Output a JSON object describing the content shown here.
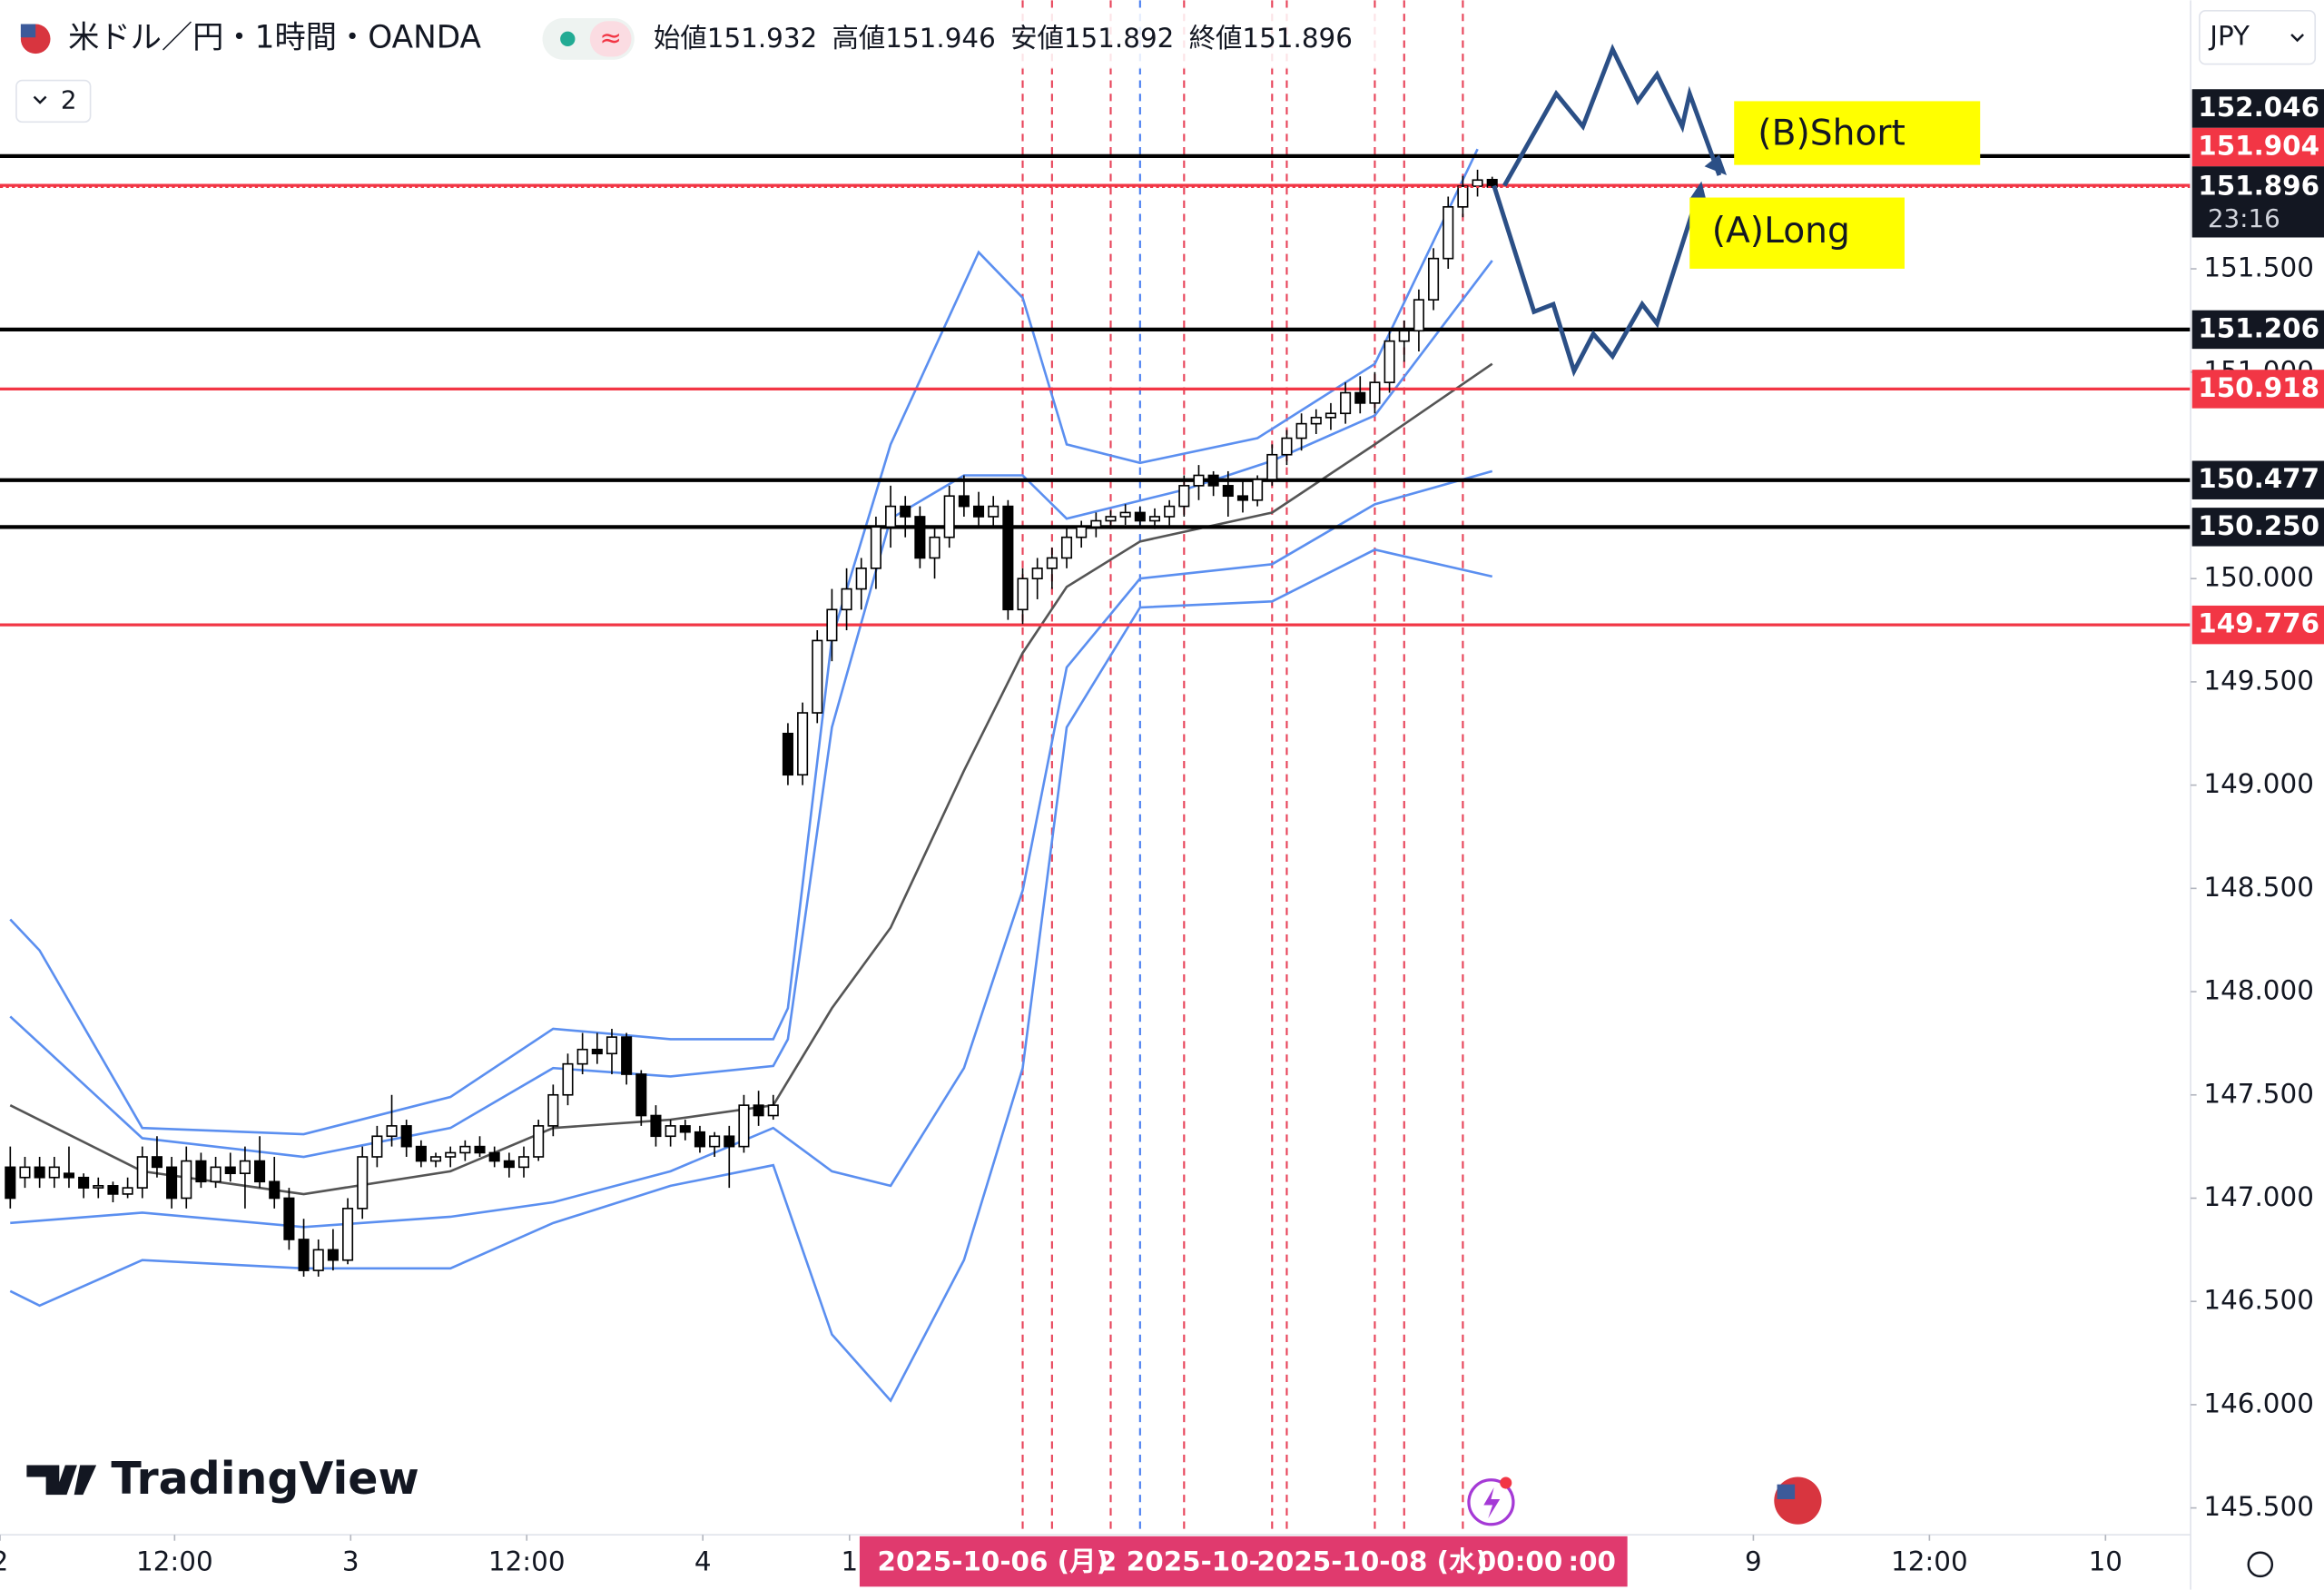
{
  "header": {
    "symbol": "米ドル／円・1時間・OANDA",
    "ohlc": [
      "始値151.932",
      "高値151.946",
      "安値151.892",
      "終値151.896"
    ],
    "indicator_count": 2,
    "currency": "JPY",
    "countdown": "23:16"
  },
  "watermark": "TradingView",
  "annotations": [
    "(B)Short",
    "(A)Long"
  ],
  "crosshair_labels": [
    "2025-10-06 (月)",
    "2",
    "2025-10-",
    "2025-10-08 (水)",
    "00:00",
    ":00"
  ],
  "chart_data": {
    "type": "candlestick",
    "open": [
      147.15,
      147.1,
      147.15,
      147.1,
      147.12,
      147.1,
      147.05,
      147.06,
      147.02,
      147.05,
      147.2,
      147.15,
      147.0,
      147.18,
      147.08,
      147.15,
      147.12,
      147.18,
      147.08,
      147.0,
      146.8,
      146.65,
      146.75,
      146.7,
      146.95,
      147.2,
      147.3,
      147.35,
      147.25,
      147.18,
      147.2,
      147.22,
      147.25,
      147.22,
      147.18,
      147.15,
      147.2,
      147.35,
      147.5,
      147.65,
      147.72,
      147.7,
      147.78,
      147.6,
      147.4,
      147.3,
      147.35,
      147.32,
      147.25,
      147.3,
      147.25,
      147.45,
      147.4,
      149.25,
      149.05,
      149.35,
      149.7,
      149.85,
      149.95,
      150.05,
      150.25,
      150.35,
      150.3,
      150.1,
      150.2,
      150.4,
      150.35,
      150.3,
      150.35,
      149.85,
      150.0,
      150.05,
      150.1,
      150.2,
      150.25,
      150.28,
      150.3,
      150.32,
      150.28,
      150.3,
      150.35,
      150.45,
      150.5,
      150.45,
      150.4,
      150.38,
      150.48,
      150.6,
      150.68,
      150.75,
      150.78,
      150.8,
      150.9,
      150.85,
      150.95,
      151.15,
      151.2,
      151.35,
      151.55,
      151.8,
      151.9,
      151.932
    ],
    "high": [
      147.25,
      147.2,
      147.2,
      147.2,
      147.25,
      147.12,
      147.1,
      147.08,
      147.1,
      147.25,
      147.3,
      147.2,
      147.25,
      147.22,
      147.2,
      147.22,
      147.25,
      147.3,
      147.2,
      147.05,
      146.9,
      146.8,
      146.85,
      147.0,
      147.25,
      147.35,
      147.5,
      147.38,
      147.28,
      147.22,
      147.25,
      147.28,
      147.3,
      147.25,
      147.22,
      147.25,
      147.38,
      147.55,
      147.7,
      147.8,
      147.8,
      147.82,
      147.8,
      147.62,
      147.45,
      147.38,
      147.38,
      147.35,
      147.32,
      147.35,
      147.5,
      147.52,
      147.5,
      149.3,
      149.4,
      149.75,
      149.95,
      150.05,
      150.1,
      150.3,
      150.45,
      150.4,
      150.35,
      150.25,
      150.45,
      150.5,
      150.42,
      150.4,
      150.38,
      150.05,
      150.1,
      150.15,
      150.25,
      150.28,
      150.32,
      150.33,
      150.36,
      150.35,
      150.34,
      150.38,
      150.5,
      150.55,
      150.52,
      150.52,
      150.48,
      150.5,
      150.65,
      150.72,
      150.8,
      150.82,
      150.85,
      150.95,
      150.98,
      151.0,
      151.2,
      151.25,
      151.4,
      151.6,
      151.85,
      151.95,
      151.98,
      151.946
    ],
    "low": [
      146.95,
      147.05,
      147.05,
      147.05,
      147.05,
      147.0,
      147.0,
      146.98,
      147.0,
      147.0,
      147.1,
      146.95,
      146.95,
      147.05,
      147.05,
      147.08,
      146.95,
      147.05,
      146.95,
      146.75,
      146.62,
      146.62,
      146.65,
      146.68,
      146.9,
      147.15,
      147.25,
      147.2,
      147.15,
      147.15,
      147.15,
      147.18,
      147.2,
      147.15,
      147.1,
      147.1,
      147.18,
      147.3,
      147.45,
      147.6,
      147.65,
      147.6,
      147.55,
      147.35,
      147.25,
      147.25,
      147.28,
      147.22,
      147.2,
      147.05,
      147.22,
      147.35,
      147.38,
      149.0,
      149.0,
      149.3,
      149.6,
      149.75,
      149.85,
      149.95,
      150.15,
      150.2,
      150.05,
      150.0,
      150.15,
      150.3,
      150.25,
      150.25,
      149.8,
      149.78,
      149.9,
      149.95,
      150.05,
      150.15,
      150.2,
      150.24,
      150.26,
      150.25,
      150.24,
      150.25,
      150.3,
      150.38,
      150.4,
      150.3,
      150.32,
      150.35,
      150.45,
      150.55,
      150.62,
      150.7,
      150.72,
      150.75,
      150.8,
      150.8,
      150.9,
      151.05,
      151.1,
      151.3,
      151.5,
      151.75,
      151.85,
      151.892
    ],
    "close": [
      147.0,
      147.15,
      147.1,
      147.15,
      147.1,
      147.05,
      147.06,
      147.02,
      147.05,
      147.2,
      147.15,
      147.0,
      147.18,
      147.08,
      147.15,
      147.12,
      147.18,
      147.08,
      147.0,
      146.8,
      146.65,
      146.75,
      146.7,
      146.95,
      147.2,
      147.3,
      147.35,
      147.25,
      147.18,
      147.2,
      147.22,
      147.25,
      147.22,
      147.18,
      147.15,
      147.2,
      147.35,
      147.5,
      147.65,
      147.72,
      147.7,
      147.78,
      147.6,
      147.4,
      147.3,
      147.35,
      147.32,
      147.25,
      147.3,
      147.25,
      147.45,
      147.4,
      147.45,
      149.05,
      149.35,
      149.7,
      149.85,
      149.95,
      150.05,
      150.25,
      150.35,
      150.3,
      150.1,
      150.2,
      150.4,
      150.35,
      150.3,
      150.35,
      149.85,
      150.0,
      150.05,
      150.1,
      150.2,
      150.25,
      150.28,
      150.3,
      150.32,
      150.28,
      150.3,
      150.35,
      150.45,
      150.5,
      150.45,
      150.4,
      150.38,
      150.48,
      150.6,
      150.68,
      150.75,
      150.78,
      150.8,
      150.9,
      150.85,
      150.95,
      151.15,
      151.2,
      151.35,
      151.55,
      151.8,
      151.9,
      151.93,
      151.896
    ],
    "up_color": "#ffffff",
    "down_color": "#000000",
    "series": [
      {
        "color": "#5b8ff0",
        "x": [
          0,
          2,
          9,
          20,
          30,
          37,
          45,
          52,
          53,
          56,
          60,
          66,
          69,
          72,
          77,
          85,
          93,
          100
        ],
        "values": [
          148.35,
          148.2,
          147.34,
          147.31,
          147.49,
          147.82,
          147.77,
          147.77,
          147.92,
          149.71,
          150.65,
          151.58,
          151.36,
          150.65,
          150.56,
          150.68,
          151.04,
          152.08
        ]
      },
      {
        "color": "#5b8ff0",
        "x": [
          0,
          9,
          20,
          30,
          37,
          45,
          52,
          53,
          56,
          60,
          65,
          69,
          72,
          80,
          86,
          93,
          101
        ],
        "values": [
          147.88,
          147.29,
          147.2,
          147.34,
          147.63,
          147.59,
          147.64,
          147.77,
          149.28,
          150.29,
          150.5,
          150.5,
          150.29,
          150.43,
          150.57,
          150.79,
          151.54
        ]
      },
      {
        "color": "#555555",
        "x": [
          0,
          9,
          20,
          30,
          37,
          45,
          52,
          56,
          60,
          65,
          69,
          72,
          77,
          86,
          93,
          101
        ],
        "values": [
          147.45,
          147.13,
          147.02,
          147.13,
          147.34,
          147.38,
          147.45,
          147.92,
          148.31,
          149.07,
          149.64,
          149.96,
          150.18,
          150.32,
          150.65,
          151.04
        ]
      },
      {
        "color": "#5b8ff0",
        "x": [
          0,
          9,
          20,
          30,
          37,
          45,
          52,
          56,
          60,
          65,
          69,
          72,
          77,
          86,
          93,
          101
        ],
        "values": [
          146.88,
          146.93,
          146.86,
          146.91,
          146.98,
          147.13,
          147.34,
          147.13,
          147.06,
          147.63,
          148.49,
          149.57,
          150.0,
          150.07,
          150.36,
          150.52
        ]
      },
      {
        "color": "#5b8ff0",
        "x": [
          0,
          2,
          9,
          20,
          30,
          37,
          45,
          52,
          56,
          60,
          65,
          69,
          72,
          77,
          86,
          93,
          101
        ],
        "values": [
          146.55,
          146.48,
          146.7,
          146.66,
          146.66,
          146.88,
          147.06,
          147.16,
          146.34,
          146.02,
          146.7,
          147.63,
          149.28,
          149.86,
          149.89,
          150.14,
          150.01
        ]
      }
    ],
    "levels": [
      {
        "value": 152.046,
        "label": "152.046",
        "color": "#000000"
      },
      {
        "value": 151.904,
        "label": "151.904",
        "color": "#f23645"
      },
      {
        "value": 151.206,
        "label": "151.206",
        "color": "#000000"
      },
      {
        "value": 150.918,
        "label": "150.918",
        "color": "#f23645"
      },
      {
        "value": 150.477,
        "label": "150.477",
        "color": "#000000"
      },
      {
        "value": 150.25,
        "label": "150.250",
        "color": "#000000"
      },
      {
        "value": 149.776,
        "label": "149.776",
        "color": "#f23645"
      }
    ],
    "vlines": [
      {
        "x": 69,
        "color": "#e8445a"
      },
      {
        "x": 71,
        "color": "#e8445a"
      },
      {
        "x": 75,
        "color": "#e8445a"
      },
      {
        "x": 77,
        "color": "#4a7ff0"
      },
      {
        "x": 80,
        "color": "#e8445a"
      },
      {
        "x": 86,
        "color": "#e8445a"
      },
      {
        "x": 87,
        "color": "#e8445a"
      },
      {
        "x": 93,
        "color": "#e8445a"
      },
      {
        "x": 95,
        "color": "#e8445a"
      },
      {
        "x": 99,
        "color": "#e8445a"
      }
    ],
    "xlim": [
      -0.7,
      148.6
    ],
    "xticks": [
      {
        "value": -0.7,
        "label": "2"
      },
      {
        "value": 11.2,
        "label": "12:00"
      },
      {
        "value": 23.2,
        "label": "3"
      },
      {
        "value": 35.2,
        "label": "12:00"
      },
      {
        "value": 47.2,
        "label": "4"
      },
      {
        "value": 57.2,
        "label": "1"
      },
      {
        "value": 118.8,
        "label": "9"
      },
      {
        "value": 130.8,
        "label": "12:00"
      },
      {
        "value": 142.8,
        "label": "10"
      }
    ],
    "ylim": [
      145.37,
      152.8
    ],
    "yticks": [
      {
        "value": 145.5,
        "label": "145.500"
      },
      {
        "value": 146,
        "label": "146.000"
      },
      {
        "value": 146.5,
        "label": "146.500"
      },
      {
        "value": 147,
        "label": "147.000"
      },
      {
        "value": 147.5,
        "label": "147.500"
      },
      {
        "value": 148,
        "label": "148.000"
      },
      {
        "value": 148.5,
        "label": "148.500"
      },
      {
        "value": 149,
        "label": "149.000"
      },
      {
        "value": 149.5,
        "label": "149.500"
      },
      {
        "value": 150,
        "label": "150.000"
      },
      {
        "value": 151,
        "label": "151.000"
      },
      {
        "value": 151.5,
        "label": "151.500"
      }
    ],
    "last_price_color": "#f23645"
  }
}
